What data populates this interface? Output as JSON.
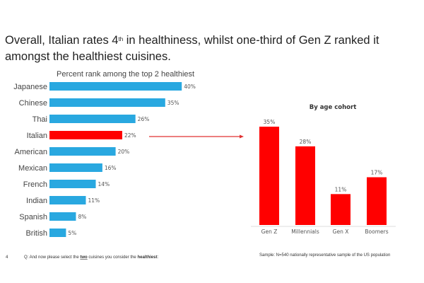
{
  "headline": {
    "before": "Overall, Italian rates 4",
    "sup": "th",
    "after": " in healthiness, whilst one-third of Gen Z ranked it amongst the healthiest cuisines."
  },
  "colors": {
    "blue": "#29A8E0",
    "red": "#FF0000",
    "arrow": "#E03030"
  },
  "chart_data": [
    {
      "type": "bar",
      "orientation": "horizontal",
      "title": "Percent rank among the top 2 healthiest",
      "categories": [
        "Japanese",
        "Chinese",
        "Thai",
        "Italian",
        "American",
        "Mexican",
        "French",
        "Indian",
        "Spanish",
        "British"
      ],
      "values": [
        40,
        35,
        26,
        22,
        20,
        16,
        14,
        11,
        8,
        5
      ],
      "labels": [
        "40%",
        "35%",
        "26%",
        "22%",
        "20%",
        "16%",
        "14%",
        "11%",
        "8%",
        "5%"
      ],
      "highlight": "Italian"
    },
    {
      "type": "bar",
      "orientation": "vertical",
      "title": "By age cohort",
      "categories": [
        "Gen Z",
        "Millennials",
        "Gen X",
        "Boomers"
      ],
      "values": [
        35,
        28,
        11,
        17
      ],
      "labels": [
        "35%",
        "28%",
        "11%",
        "17%"
      ]
    }
  ],
  "footer": {
    "page_number": "4",
    "question_pre": "Q: And now please select the ",
    "question_bold1": "two",
    "question_mid": " cuisines you consider the ",
    "question_bold2": "healthiest",
    "question_end": ":",
    "sample": "Sample: N=540 nationally representative sample of the US population"
  }
}
